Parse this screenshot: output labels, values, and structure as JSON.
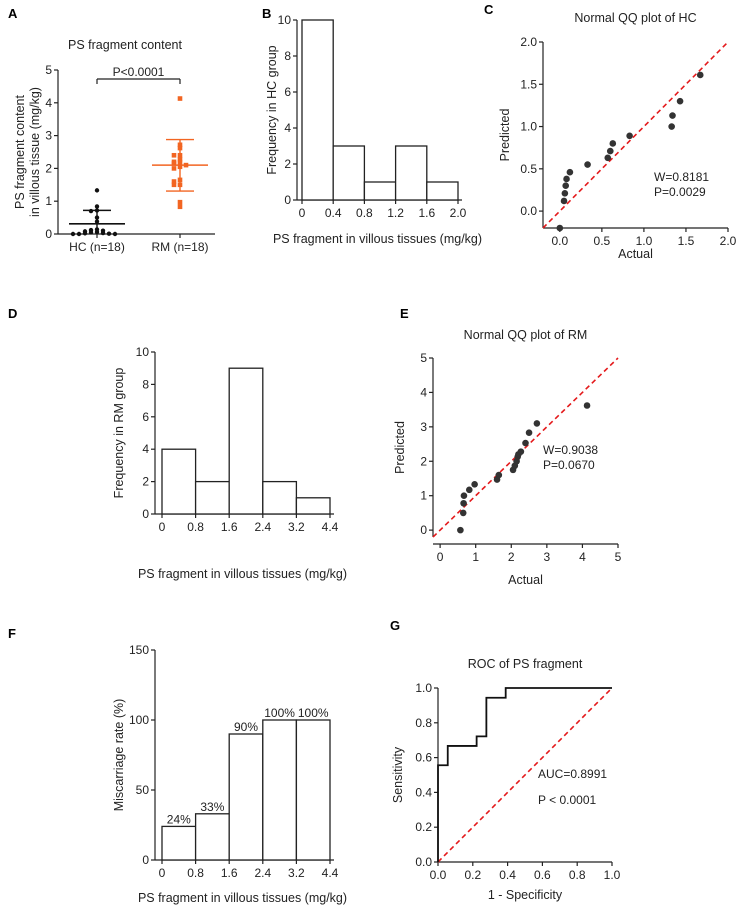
{
  "colors": {
    "hc": "#111111",
    "rm": "#f26522",
    "reference_line": "#e41a1c",
    "axis": "#222222",
    "point": "#333333"
  },
  "chart_data": [
    {
      "panel": "A",
      "type": "scatter",
      "title": "PS fragment content",
      "ylabel": [
        "PS fragment content",
        "in villous tissue (mg/kg)"
      ],
      "categories": [
        "HC (n=18)",
        "RM (n=18)"
      ],
      "ylim": [
        0,
        5
      ],
      "yticks": [
        "0",
        "1",
        "2",
        "3",
        "4",
        "5"
      ],
      "annotation": "P<0.0001",
      "series": [
        {
          "values": [
            1.33,
            0.84,
            0.72,
            0.7,
            0.5,
            0.38,
            0.14,
            0.12,
            0.1,
            0.08,
            0.06,
            0.05,
            0.03,
            0.02,
            0.01,
            0.0,
            0.0,
            0.0
          ],
          "mean": 0.31,
          "sd_low": 0.0,
          "sd_high": 0.72
        },
        {
          "values": [
            4.13,
            2.72,
            2.62,
            2.4,
            2.4,
            2.28,
            2.2,
            2.18,
            2.15,
            2.1,
            2.05,
            2.0,
            1.65,
            1.6,
            1.5,
            1.5,
            0.97,
            0.83
          ],
          "mean": 2.1,
          "sd_low": 1.31,
          "sd_high": 2.88
        }
      ]
    },
    {
      "panel": "B",
      "type": "bar",
      "xlabel": "PS fragment  in villous tissues (mg/kg)",
      "ylabel": "Frequency in HC group",
      "bin_edges": [
        "0",
        "0.4",
        "0.8",
        "1.2",
        "1.6",
        "2.0"
      ],
      "values": [
        10,
        3,
        1,
        3,
        1
      ],
      "ylim": [
        0,
        10
      ],
      "yticks": [
        "0",
        "2",
        "4",
        "6",
        "8",
        "10"
      ]
    },
    {
      "panel": "C",
      "type": "scatter",
      "title": "Normal QQ plot of HC",
      "xlabel": "Actual",
      "ylabel": "Predicted",
      "xlim": [
        -0.2,
        2.0
      ],
      "ylim": [
        -0.2,
        2.0
      ],
      "xticks": [
        "0.0",
        "0.5",
        "1.0",
        "1.5",
        "2.0"
      ],
      "yticks": [
        "0.0",
        "0.5",
        "1.0",
        "1.5",
        "2.0"
      ],
      "points": [
        [
          0.0,
          -0.2
        ],
        [
          0.05,
          0.12
        ],
        [
          0.06,
          0.21
        ],
        [
          0.07,
          0.3
        ],
        [
          0.08,
          0.38
        ],
        [
          0.12,
          0.46
        ],
        [
          0.33,
          0.55
        ],
        [
          0.57,
          0.63
        ],
        [
          0.6,
          0.71
        ],
        [
          0.63,
          0.8
        ],
        [
          0.83,
          0.89
        ],
        [
          1.33,
          1.0
        ],
        [
          1.34,
          1.13
        ],
        [
          1.43,
          1.3
        ],
        [
          1.67,
          1.61
        ]
      ],
      "annotations": [
        "W=0.8181",
        "P=0.0029"
      ]
    },
    {
      "panel": "D",
      "type": "bar",
      "xlabel": "PS fragment  in villous tissues (mg/kg)",
      "ylabel": "Frequency in RM group",
      "bin_edges": [
        "0",
        "0.8",
        "1.6",
        "2.4",
        "3.2",
        "4.4"
      ],
      "values": [
        4,
        2,
        9,
        2,
        1
      ],
      "ylim": [
        0,
        10
      ],
      "yticks": [
        "0",
        "2",
        "4",
        "6",
        "8",
        "10"
      ]
    },
    {
      "panel": "E",
      "type": "scatter",
      "title": "Normal QQ plot of RM",
      "xlabel": "Actual",
      "ylabel": "Predicted",
      "xlim": [
        -0.2,
        5
      ],
      "ylim": [
        -0.2,
        5
      ],
      "xticks": [
        "0",
        "1",
        "2",
        "3",
        "4",
        "5"
      ],
      "yticks": [
        "0",
        "1",
        "2",
        "3",
        "4",
        "5"
      ],
      "points": [
        [
          0.57,
          0.0
        ],
        [
          0.65,
          0.5
        ],
        [
          0.66,
          0.78
        ],
        [
          0.67,
          1.0
        ],
        [
          0.82,
          1.17
        ],
        [
          0.97,
          1.33
        ],
        [
          1.6,
          1.47
        ],
        [
          1.65,
          1.6
        ],
        [
          2.05,
          1.75
        ],
        [
          2.1,
          1.87
        ],
        [
          2.15,
          2.0
        ],
        [
          2.18,
          2.13
        ],
        [
          2.2,
          2.2
        ],
        [
          2.27,
          2.28
        ],
        [
          2.4,
          2.53
        ],
        [
          2.5,
          2.83
        ],
        [
          2.72,
          3.1
        ],
        [
          4.13,
          3.62
        ]
      ],
      "annotations": [
        "W=0.9038",
        "P=0.0670"
      ]
    },
    {
      "panel": "F",
      "type": "bar",
      "xlabel": "PS fragment  in villous tissues (mg/kg)",
      "ylabel": "Miscarriage rate (%)",
      "bin_edges": [
        "0",
        "0.8",
        "1.6",
        "2.4",
        "3.2",
        "4.4"
      ],
      "values": [
        24,
        33,
        90,
        100,
        100
      ],
      "data_labels": [
        "24%",
        "33%",
        "90%",
        "100%",
        "100%"
      ],
      "ylim": [
        0,
        150
      ],
      "yticks": [
        "0",
        "50",
        "100",
        "150"
      ]
    },
    {
      "panel": "G",
      "type": "line",
      "title": "ROC of PS fragment",
      "xlabel": "1 - Specificity",
      "ylabel": "Sensitivity",
      "xlim": [
        0,
        1
      ],
      "ylim": [
        0,
        1
      ],
      "xticks": [
        "0.0",
        "0.2",
        "0.4",
        "0.6",
        "0.8",
        "1.0"
      ],
      "yticks": [
        "0.0",
        "0.2",
        "0.4",
        "0.6",
        "0.8",
        "1.0"
      ],
      "roc": [
        [
          0,
          0
        ],
        [
          0,
          0.556
        ],
        [
          0.056,
          0.556
        ],
        [
          0.056,
          0.667
        ],
        [
          0.222,
          0.667
        ],
        [
          0.222,
          0.722
        ],
        [
          0.278,
          0.722
        ],
        [
          0.278,
          0.944
        ],
        [
          0.389,
          0.944
        ],
        [
          0.389,
          1.0
        ],
        [
          1.0,
          1.0
        ]
      ],
      "annotations": [
        "AUC=0.8991",
        "P < 0.0001"
      ]
    }
  ]
}
